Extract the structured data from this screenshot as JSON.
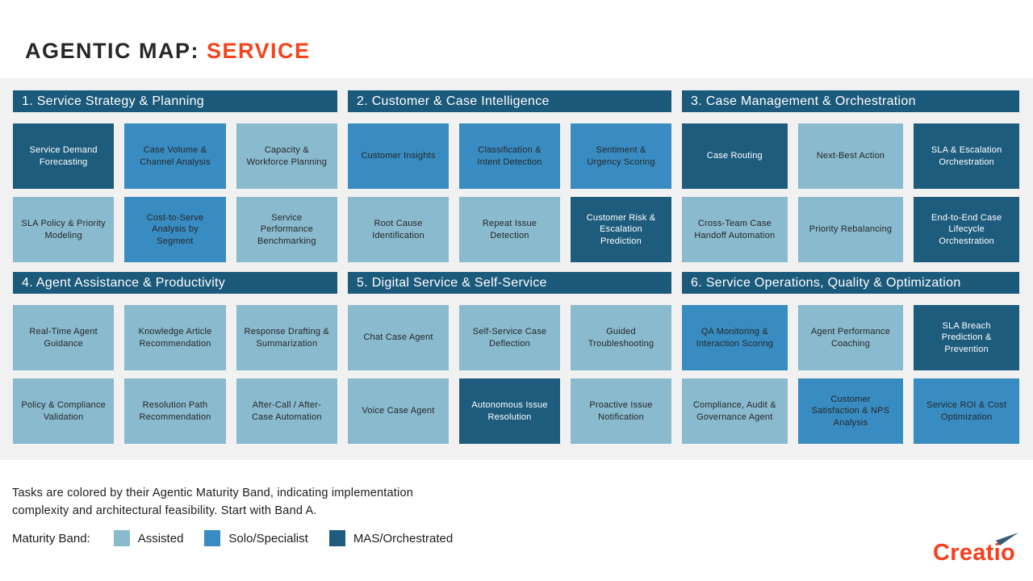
{
  "title": {
    "prefix": "AGENTIC MAP: ",
    "highlight": "SERVICE"
  },
  "colors": {
    "assisted": "#8abace",
    "solo": "#398cc1",
    "mas": "#1e5c7e",
    "header_bg": "#1c5a7c",
    "accent": "#f5431d",
    "band_bg": "#f1f1f1",
    "logo_red": "#f5401e"
  },
  "sections": [
    {
      "title": "1. Service Strategy & Planning",
      "tiles": [
        {
          "label": "Service Demand Forecasting",
          "band": "mas"
        },
        {
          "label": "Case Volume & Channel Analysis",
          "band": "solo"
        },
        {
          "label": "Capacity & Workforce Planning",
          "band": "assisted"
        },
        {
          "label": "SLA Policy & Priority Modeling",
          "band": "assisted"
        },
        {
          "label": "Cost-to-Serve Analysis by Segment",
          "band": "solo"
        },
        {
          "label": "Service Performance Benchmarking",
          "band": "assisted"
        }
      ]
    },
    {
      "title": "2. Customer & Case Intelligence",
      "tiles": [
        {
          "label": "Customer Insights",
          "band": "solo"
        },
        {
          "label": "Classification & Intent Detection",
          "band": "solo"
        },
        {
          "label": "Sentiment & Urgency Scoring",
          "band": "solo"
        },
        {
          "label": "Root Cause Identification",
          "band": "assisted"
        },
        {
          "label": "Repeat Issue Detection",
          "band": "assisted"
        },
        {
          "label": "Customer Risk & Escalation Prediction",
          "band": "mas"
        }
      ]
    },
    {
      "title": "3. Case Management & Orchestration",
      "tiles": [
        {
          "label": "Case Routing",
          "band": "mas"
        },
        {
          "label": "Next-Best Action",
          "band": "assisted"
        },
        {
          "label": "SLA & Escalation Orchestration",
          "band": "mas"
        },
        {
          "label": "Cross-Team Case Handoff Automation",
          "band": "assisted"
        },
        {
          "label": "Priority Rebalancing",
          "band": "assisted"
        },
        {
          "label": "End-to-End Case Lifecycle Orchestration",
          "band": "mas"
        }
      ]
    },
    {
      "title": "4. Agent Assistance & Productivity",
      "tiles": [
        {
          "label": "Real-Time Agent Guidance",
          "band": "assisted"
        },
        {
          "label": "Knowledge Article Recommendation",
          "band": "assisted"
        },
        {
          "label": "Response Drafting & Summarization",
          "band": "assisted"
        },
        {
          "label": "Policy & Compliance Validation",
          "band": "assisted"
        },
        {
          "label": "Resolution Path Recommendation",
          "band": "assisted"
        },
        {
          "label": "After-Call / After-Case Automation",
          "band": "assisted"
        }
      ]
    },
    {
      "title": "5. Digital Service & Self-Service",
      "tiles": [
        {
          "label": "Chat Case Agent",
          "band": "assisted"
        },
        {
          "label": "Self-Service Case Deflection",
          "band": "assisted"
        },
        {
          "label": "Guided Troubleshooting",
          "band": "assisted"
        },
        {
          "label": "Voice Case Agent",
          "band": "assisted"
        },
        {
          "label": "Autonomous Issue Resolution",
          "band": "mas"
        },
        {
          "label": "Proactive Issue Notification",
          "band": "assisted"
        }
      ]
    },
    {
      "title": "6. Service Operations, Quality & Optimization",
      "tiles": [
        {
          "label": "QA Monitoring & Interaction Scoring",
          "band": "solo"
        },
        {
          "label": "Agent Performance Coaching",
          "band": "assisted"
        },
        {
          "label": "SLA Breach Prediction & Prevention",
          "band": "mas"
        },
        {
          "label": "Compliance, Audit & Governance Agent",
          "band": "assisted"
        },
        {
          "label": "Customer Satisfaction & NPS Analysis",
          "band": "solo"
        },
        {
          "label": "Service ROI & Cost Optimization",
          "band": "solo"
        }
      ]
    }
  ],
  "footer": {
    "note": "Tasks are colored by their Agentic Maturity Band, indicating implementation\ncomplexity and architectural feasibility. Start with Band A."
  },
  "legend": {
    "label": "Maturity Band:",
    "items": [
      {
        "label": "Assisted",
        "band": "assisted"
      },
      {
        "label": "Solo/Specialist",
        "band": "solo"
      },
      {
        "label": "MAS/Orchestrated",
        "band": "mas"
      }
    ]
  },
  "logo": {
    "text": "Creatio"
  }
}
